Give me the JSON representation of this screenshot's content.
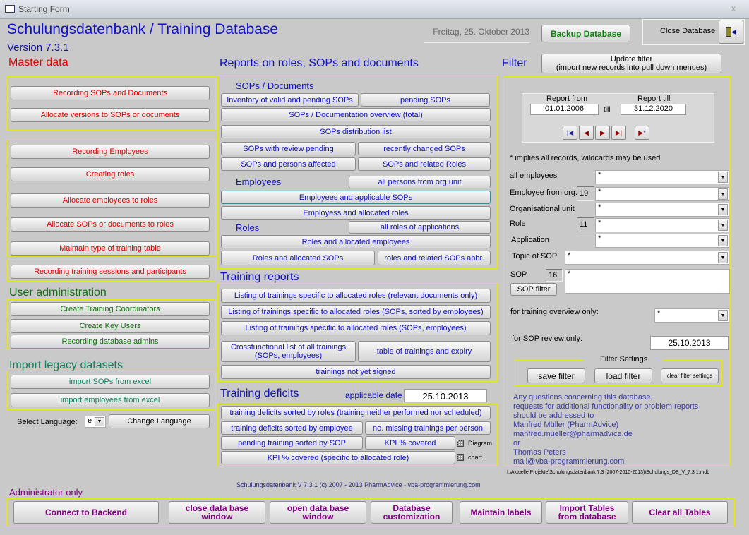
{
  "window": {
    "title": "Starting Form",
    "close": "x"
  },
  "header": {
    "title": "Schulungsdatenbank / Training Database",
    "version": "Version 7.3.1",
    "date": "Freitag, 25. Oktober 2013",
    "backup": "Backup Database",
    "close_db": "Close Database"
  },
  "master": {
    "heading": "Master data",
    "buttons": [
      "Recording SOPs and Documents",
      "Allocate versions to SOPs or documents",
      "Recording Employees",
      "Creating roles",
      "Allocate employees to roles",
      "Allocate SOPs or documents to roles",
      "Maintain type of training table",
      "Recording training sessions  and participants"
    ]
  },
  "useradmin": {
    "heading": "User administration",
    "buttons": [
      "Create Training Coordinators",
      "Create Key Users",
      "Recording database admins"
    ]
  },
  "legacy": {
    "heading": "Import legacy datasets",
    "buttons": [
      "import SOPs from excel",
      "import employees from excel"
    ]
  },
  "language": {
    "label": "Select Language:",
    "value": "e",
    "button": "Change Language"
  },
  "reports": {
    "heading": "Reports on roles, SOPs and documents",
    "sops_heading": "SOPs / Documents",
    "employees_heading": "Employees",
    "roles_heading": "Roles",
    "buttons": [
      "Inventory of valid and pending SOPs",
      "pending SOPs",
      "SOPs / Documentation overview (total)",
      "SOPs distribution list",
      "SOPs with review pending",
      "recently changed SOPs",
      "SOPs and persons affected",
      "SOPs and related Roles",
      "all persons from org.unit",
      "Employees and applicable SOPs",
      "Employess and allocated roles",
      "all roles of applications",
      "Roles and allocated employees",
      "Roles and allocated SOPs",
      "roles and related SOPs abbr."
    ]
  },
  "training": {
    "heading": "Training reports",
    "buttons": [
      "Listing of trainings specific to allocated roles (relevant documents only)",
      "Listing of trainings specific to allocated roles (SOPs, sorted by employees)",
      "Listing of trainings specific to allocated roles (SOPs, employees)",
      "Crossfunctional list of all trainings (SOPs, employees)",
      "table of trainings and expiry",
      "trainings not yet signed"
    ]
  },
  "deficits": {
    "heading": "Training deficits",
    "date_label": "applicable date",
    "date": "25.10.2013",
    "buttons": [
      "training deficits sorted by roles (training neither performed nor scheduled)",
      "training deficits sorted by employee",
      "no. missing trainings per person",
      "pending training sorted by SOP",
      "KPI % covered",
      "KPI % covered (specific to allocated role)"
    ],
    "diagram": "Diagram",
    "chart": "chart"
  },
  "footer": {
    "copyright": "Schulungsdatenbank V 7.3.1  (c) 2007 - 2013 PharmAdvice - vba-programmierung.com",
    "path": "I:\\Aktuelle Projekte\\Schulungsdatenbank 7.3 (2007-2010-2013)\\Schulungs_DB_V_7.3.1.mdb"
  },
  "filter": {
    "heading": "Filter",
    "update": "Update filter\n(import new records into pull down menues)",
    "report_from": "Report from",
    "report_from_value": "01.01.2006",
    "till": "till",
    "report_till": "Report till",
    "report_till_value": "31.12.2020",
    "hint": "* implies all records, wildcards may be used",
    "all_employees": "all employees",
    "all_employees_value": "*",
    "emp_org": "Employee from org.",
    "emp_org_count": "19",
    "emp_org_value": "*",
    "org_unit": "Organisational unit",
    "org_unit_value": "*",
    "role": "Role",
    "role_count": "11",
    "role_value": "*",
    "application": "Application",
    "application_value": "*",
    "topic": "Topic of SOP",
    "topic_value": "*",
    "sop": "SOP",
    "sop_count": "16",
    "sop_value": "*",
    "sop_filter": "SOP filter",
    "training_overview": "for training overview only:",
    "training_overview_value": "*",
    "sop_review": "for SOP review only:",
    "sop_review_value": "25.10.2013",
    "settings": "Filter Settings",
    "save": "save filter",
    "load": "load filter",
    "clear": "clear filter settings"
  },
  "contact": [
    "Any questions concerning this database,",
    "requests for additional functionality or problem reports",
    "should be addressed to",
    "Manfred Müller (PharmAdvice)",
    "manfred.mueller@pharmadvice.de",
    "or",
    "Thomas Peters",
    "mail@vba-programmierung.com"
  ],
  "admin": {
    "heading": "Administrator only",
    "buttons": [
      "Connect to Backend",
      "close data base window",
      "open data base window",
      "Database customization",
      "Maintain labels",
      "Import Tables from database",
      "Clear all Tables"
    ]
  }
}
